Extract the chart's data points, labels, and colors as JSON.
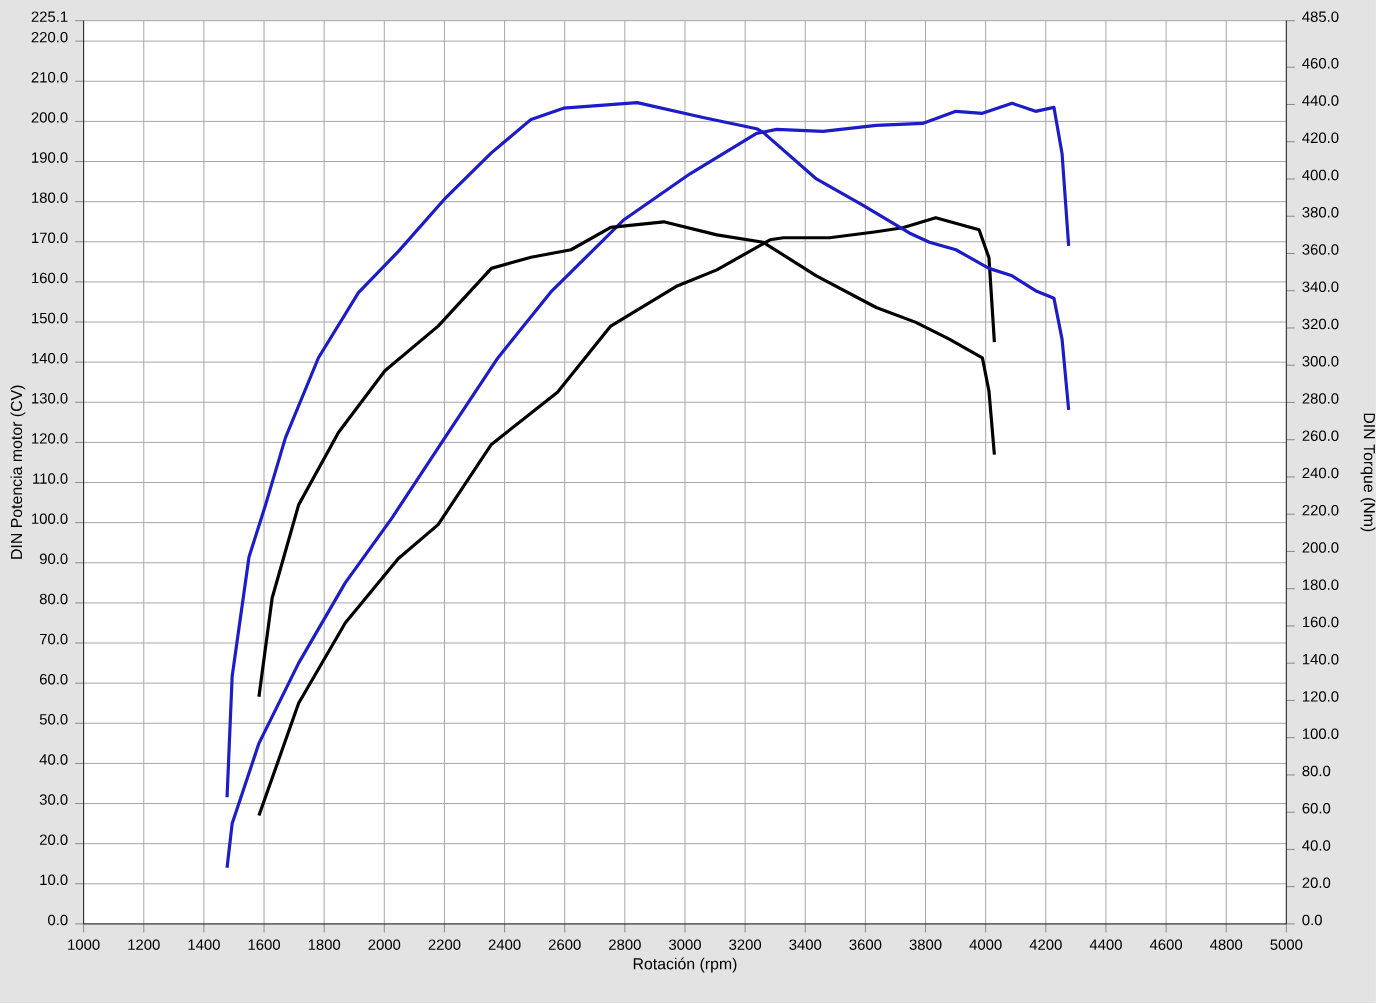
{
  "chart_data": {
    "type": "line",
    "xlabel": "Rotación (rpm)",
    "ylabel": "DIN Potencia motor (CV)",
    "y2label": "DIN Torque (Nm)",
    "xlim": [
      1000,
      5000
    ],
    "xticks": [
      1000,
      1200,
      1400,
      1600,
      1800,
      2000,
      2200,
      2400,
      2600,
      2800,
      3000,
      3200,
      3400,
      3600,
      3800,
      4000,
      4200,
      4400,
      4600,
      4800,
      5000
    ],
    "ylim": [
      0,
      225.1
    ],
    "yticks": [
      {
        "value": 0,
        "label": "0.0"
      },
      {
        "value": 10,
        "label": "10.0"
      },
      {
        "value": 20,
        "label": "20.0"
      },
      {
        "value": 30,
        "label": "30.0"
      },
      {
        "value": 40,
        "label": "40.0"
      },
      {
        "value": 50,
        "label": "50.0"
      },
      {
        "value": 60,
        "label": "60.0"
      },
      {
        "value": 70,
        "label": "70.0"
      },
      {
        "value": 80,
        "label": "80.0"
      },
      {
        "value": 90,
        "label": "90.0"
      },
      {
        "value": 100,
        "label": "100.0"
      },
      {
        "value": 110,
        "label": "110.0"
      },
      {
        "value": 120,
        "label": "120.0"
      },
      {
        "value": 130,
        "label": "130.0"
      },
      {
        "value": 140,
        "label": "140.0"
      },
      {
        "value": 150,
        "label": "150.0"
      },
      {
        "value": 160,
        "label": "160.0"
      },
      {
        "value": 170,
        "label": "170.0"
      },
      {
        "value": 180,
        "label": "180.0"
      },
      {
        "value": 190,
        "label": "190.0"
      },
      {
        "value": 200,
        "label": "200.0"
      },
      {
        "value": 210,
        "label": "210.0"
      },
      {
        "value": 220,
        "label": "220.0"
      },
      {
        "value": 225.1,
        "label": "225.1"
      }
    ],
    "y2lim": [
      0,
      485
    ],
    "y2ticks": [
      {
        "value": 0,
        "label": "0.0"
      },
      {
        "value": 20,
        "label": "20.0"
      },
      {
        "value": 40,
        "label": "40.0"
      },
      {
        "value": 60,
        "label": "60.0"
      },
      {
        "value": 80,
        "label": "80.0"
      },
      {
        "value": 100,
        "label": "100.0"
      },
      {
        "value": 120,
        "label": "120.0"
      },
      {
        "value": 140,
        "label": "140.0"
      },
      {
        "value": 160,
        "label": "160.0"
      },
      {
        "value": 180,
        "label": "180.0"
      },
      {
        "value": 200,
        "label": "200.0"
      },
      {
        "value": 220,
        "label": "220.0"
      },
      {
        "value": 240,
        "label": "240.0"
      },
      {
        "value": 260,
        "label": "260.0"
      },
      {
        "value": 280,
        "label": "280.0"
      },
      {
        "value": 300,
        "label": "300.0"
      },
      {
        "value": 320,
        "label": "320.0"
      },
      {
        "value": 340,
        "label": "340.0"
      },
      {
        "value": 360,
        "label": "360.0"
      },
      {
        "value": 380,
        "label": "380.0"
      },
      {
        "value": 400,
        "label": "400.0"
      },
      {
        "value": 420,
        "label": "420.0"
      },
      {
        "value": 440,
        "label": "440.0"
      },
      {
        "value": 460,
        "label": "460.0"
      },
      {
        "value": 485,
        "label": "485.0"
      }
    ],
    "grid": true,
    "marker": "none",
    "series": [
      {
        "color": "#1c1cc8",
        "axis": "y2",
        "x": [
          1477,
          1494,
          1550,
          1605,
          1671,
          1781,
          1914,
          2046,
          2199,
          2356,
          2488,
          2596,
          2841,
          3060,
          3238,
          3260,
          3437,
          3591,
          3746,
          3813,
          3901,
          4011,
          4088,
          4166,
          4227,
          4254,
          4276
        ],
        "values": [
          68,
          133,
          197,
          225,
          261,
          304,
          339,
          361,
          389,
          414,
          432,
          438,
          441,
          433,
          427,
          425,
          400,
          386,
          371,
          366,
          362,
          352,
          348,
          340,
          336,
          314,
          276
        ]
      },
      {
        "color": "#1c1cc8",
        "x": [
          1477,
          1494,
          1583,
          1715,
          1870,
          2024,
          2200,
          2377,
          2554,
          2797,
          3018,
          3238,
          3305,
          3459,
          3636,
          3790,
          3901,
          3989,
          4088,
          4166,
          4227,
          4254,
          4276
        ],
        "values": [
          14,
          25,
          45,
          65,
          85,
          101,
          121,
          141,
          157.5,
          175.5,
          187,
          197,
          198,
          197.5,
          199,
          199.5,
          202.5,
          202,
          204.5,
          202.5,
          203.5,
          192,
          169
        ]
      },
      {
        "color": "#000000",
        "axis": "y2",
        "x": [
          1583,
          1627,
          1715,
          1848,
          2002,
          2179,
          2356,
          2488,
          2621,
          2753,
          2929,
          3106,
          3260,
          3437,
          3636,
          3768,
          3879,
          3989,
          4011,
          4029
        ],
        "values": [
          122,
          175,
          225,
          264,
          297,
          321,
          352,
          358,
          362,
          374,
          377,
          370,
          366,
          348,
          331,
          323,
          314,
          304,
          286,
          252
        ]
      },
      {
        "color": "#000000",
        "x": [
          1583,
          1715,
          1870,
          2046,
          2179,
          2356,
          2576,
          2753,
          2974,
          3106,
          3283,
          3327,
          3481,
          3636,
          3724,
          3834,
          3978,
          4011,
          4029
        ],
        "values": [
          27,
          55,
          75,
          91,
          99.5,
          119.5,
          132.5,
          149,
          159,
          163,
          170.5,
          171,
          171,
          172.5,
          173.5,
          176,
          173,
          166,
          145
        ]
      }
    ]
  }
}
